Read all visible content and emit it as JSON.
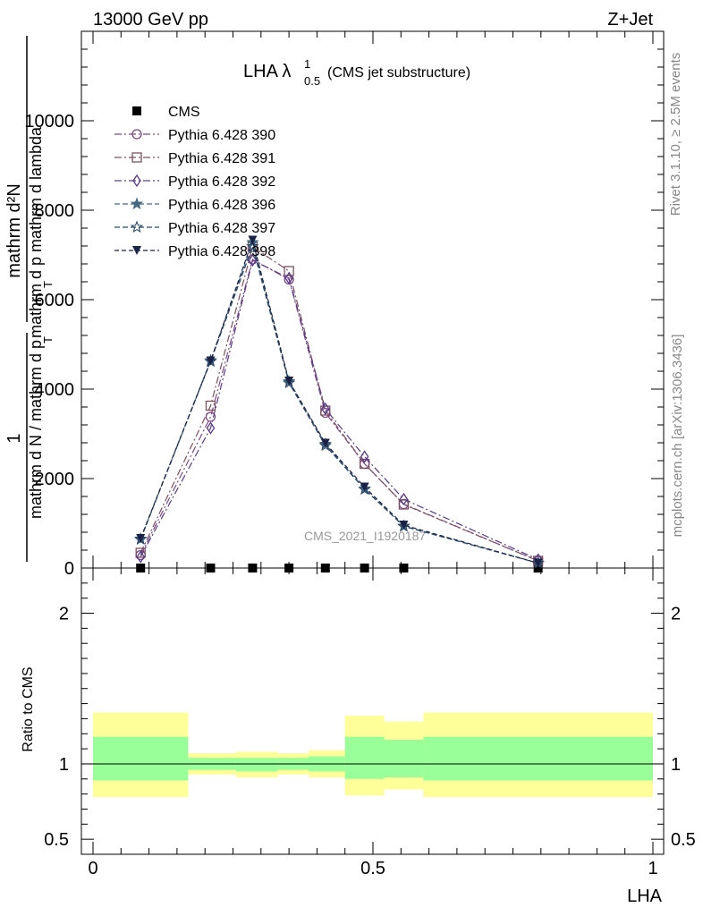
{
  "header": {
    "left": "13000 GeV pp",
    "right": "Z+Jet"
  },
  "side_labels": {
    "rivet": "Rivet 3.1.10, ≥ 2.5M events",
    "mcplots": "mcplots.cern.ch [arXiv:1306.3436]"
  },
  "watermark": "CMS_2021_I1920187",
  "chart_data": [
    {
      "type": "line",
      "title": "LHA λ",
      "title_sup": "1",
      "title_sub": "0.5",
      "title_suffix": "(CMS jet substructure)",
      "xlabel": "LHA",
      "ylabel_lines": [
        "mathrm d²N",
        "mathrm d p",
        "T",
        "mathrm d lambda",
        "1",
        "mathrm d N / mathrm d p",
        "T"
      ],
      "ylabel_top": "mathrm d²N",
      "ylabel_mid": "mathrm d p  mathrm d lambda",
      "ylabel_mid_sub": "T",
      "ylabel_one": "1",
      "ylabel_bottom": "mathrm d N / mathrm d p",
      "ylabel_bottom_sub": "T",
      "xlim": [
        -0.02,
        1.0
      ],
      "ylim": [
        0,
        12000
      ],
      "yticks": [
        0,
        2000,
        4000,
        6000,
        8000,
        10000
      ],
      "ytick_labels": [
        "0",
        "2000",
        "4000",
        "6000",
        "8000",
        "10000"
      ],
      "x": [
        0.085,
        0.21,
        0.285,
        0.35,
        0.415,
        0.485,
        0.555,
        0.795
      ],
      "series": [
        {
          "name": "CMS",
          "marker": "square",
          "color": "#000000",
          "dash": "none",
          "values": [
            0,
            0,
            0,
            0,
            0,
            0,
            0,
            0
          ]
        },
        {
          "name": "Pythia 6.428 390",
          "marker": "circle",
          "color": "#7b4a86",
          "dash": "8,3,2,3",
          "values": [
            290,
            3380,
            6900,
            6450,
            3470,
            2330,
            1430,
            160
          ]
        },
        {
          "name": "Pythia 6.428 391",
          "marker": "square-open",
          "color": "#7d5060",
          "dash": "8,3,2,3",
          "values": [
            340,
            3630,
            7180,
            6640,
            3520,
            2330,
            1420,
            160
          ]
        },
        {
          "name": "Pythia 6.428 392",
          "marker": "diamond-open",
          "color": "#5a3a8a",
          "dash": "8,3,2,3",
          "values": [
            250,
            3130,
            6880,
            6480,
            3560,
            2490,
            1540,
            190
          ]
        },
        {
          "name": "Pythia 6.428 396",
          "marker": "star",
          "color": "#456a84",
          "dash": "6,3",
          "values": [
            640,
            4640,
            7280,
            4170,
            2770,
            1770,
            930,
            110
          ]
        },
        {
          "name": "Pythia 6.428 397",
          "marker": "star-open",
          "color": "#2b4a6a",
          "dash": "6,3",
          "values": [
            650,
            4620,
            7190,
            4140,
            2740,
            1760,
            940,
            110
          ]
        },
        {
          "name": "Pythia 6.428 398",
          "marker": "triangle-down",
          "color": "#1a2248",
          "dash": "5,3",
          "values": [
            660,
            4630,
            7330,
            4180,
            2790,
            1810,
            960,
            110
          ]
        }
      ]
    },
    {
      "type": "area",
      "ylabel": "Ratio to CMS",
      "ylim": [
        0.4,
        2.3
      ],
      "yticks": [
        0.5,
        1,
        2
      ],
      "ytick_labels": [
        "0.5",
        "1",
        "2"
      ],
      "xticks": [
        0,
        0.5,
        1
      ],
      "xtick_labels": [
        "0",
        "0.5",
        "1"
      ],
      "bands": {
        "edges": [
          0,
          0.17,
          0.255,
          0.33,
          0.385,
          0.45,
          0.52,
          0.59,
          1.0
        ],
        "yellow_up": [
          1.34,
          1.07,
          1.08,
          1.07,
          1.09,
          1.32,
          1.28,
          1.34
        ],
        "yellow_dn": [
          0.78,
          0.93,
          0.91,
          0.93,
          0.91,
          0.79,
          0.83,
          0.78
        ],
        "green_up": [
          1.18,
          1.04,
          1.04,
          1.04,
          1.05,
          1.18,
          1.16,
          1.18
        ],
        "green_dn": [
          0.89,
          0.96,
          0.95,
          0.96,
          0.95,
          0.9,
          0.91,
          0.89
        ]
      },
      "reference": 1,
      "colors": {
        "yellow": "#ffff99",
        "green": "#99ff99"
      }
    }
  ]
}
